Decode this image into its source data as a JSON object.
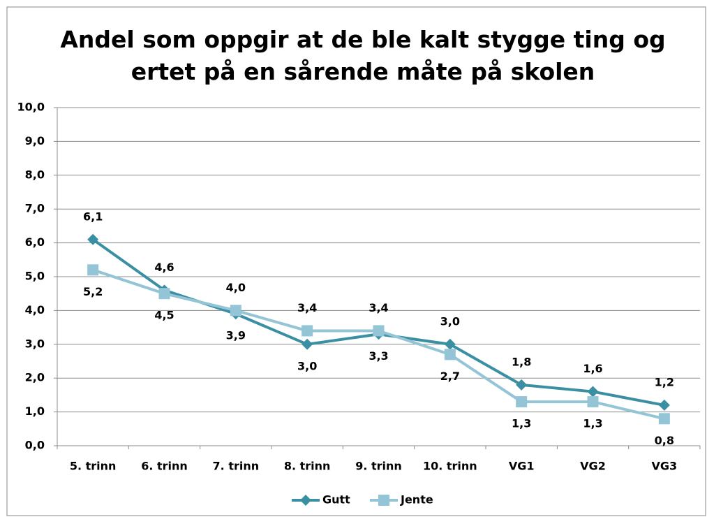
{
  "chart_data": {
    "type": "line",
    "title": "Andel som oppgir at de ble kalt stygge ting og ertet på en sårende måte på skolen",
    "categories": [
      "5. trinn",
      "6. trinn",
      "7. trinn",
      "8. trinn",
      "9. trinn",
      "10. trinn",
      "VG1",
      "VG2",
      "VG3"
    ],
    "series": [
      {
        "name": "Gutt",
        "color": "#3a8fa3",
        "marker": "diamond",
        "values": [
          6.1,
          4.6,
          3.9,
          3.0,
          3.3,
          3.0,
          1.8,
          1.6,
          1.2
        ],
        "value_labels": [
          "6,1",
          "4,6",
          "3,9",
          "3,0",
          "3,3",
          "3,0",
          "1,8",
          "1,6",
          "1,2"
        ]
      },
      {
        "name": "Jente",
        "color": "#93c5d6",
        "marker": "square",
        "values": [
          5.2,
          4.5,
          4.0,
          3.4,
          3.4,
          2.7,
          1.3,
          1.3,
          0.8
        ],
        "value_labels": [
          "5,2",
          "4,5",
          "4,0",
          "3,4",
          "3,4",
          "2,7",
          "1,3",
          "1,3",
          "0,8"
        ]
      }
    ],
    "ylim": [
      0,
      10
    ],
    "yticks": [
      {
        "value": 0,
        "label": "0,0"
      },
      {
        "value": 1,
        "label": "1,0"
      },
      {
        "value": 2,
        "label": "2,0"
      },
      {
        "value": 3,
        "label": "3,0"
      },
      {
        "value": 4,
        "label": "4,0"
      },
      {
        "value": 5,
        "label": "5,0"
      },
      {
        "value": 6,
        "label": "6,0"
      },
      {
        "value": 7,
        "label": "7,0"
      },
      {
        "value": 8,
        "label": "8,0"
      },
      {
        "value": 9,
        "label": "9,0"
      },
      {
        "value": 10,
        "label": "10,0"
      }
    ],
    "grid": true,
    "legend": "bottom"
  }
}
